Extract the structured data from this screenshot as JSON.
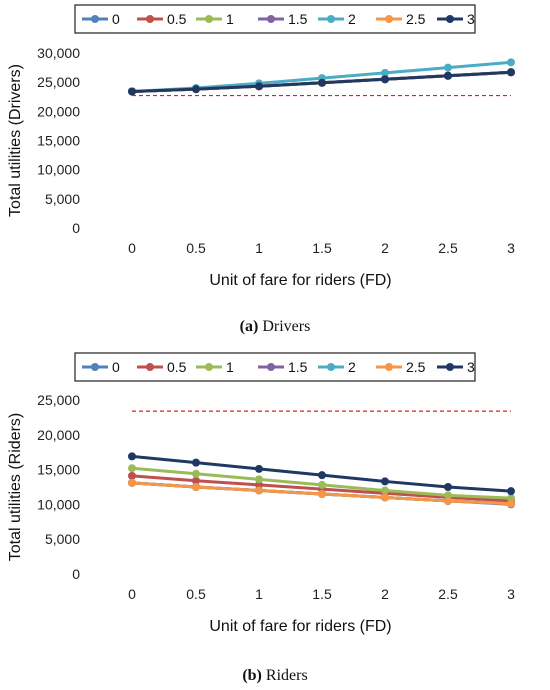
{
  "chart_data": [
    {
      "type": "line",
      "x": [
        0,
        0.5,
        1,
        1.5,
        2,
        2.5,
        3
      ],
      "x_tick_labels": [
        "0",
        "0.5",
        "1",
        "1.5",
        "2",
        "2.5",
        "3"
      ],
      "xlabel": "Unit of fare for riders (FD)",
      "ylabel": "Total utilities (Drivers)",
      "ylim": [
        0,
        30000
      ],
      "y_ticks": [
        0,
        5000,
        10000,
        15000,
        20000,
        25000,
        30000
      ],
      "y_tick_labels": [
        "0",
        "5,000",
        "10,000",
        "15,000",
        "20,000",
        "25,000",
        "30,000"
      ],
      "grid": false,
      "legend_position": "top",
      "legend": [
        "0",
        "0.5",
        "1",
        "1.5",
        "2",
        "2.5",
        "3"
      ],
      "series": [
        {
          "name": "0",
          "color": "#4f81bd",
          "values": [
            23400,
            23800,
            24300,
            24900,
            25500,
            26100,
            26700
          ]
        },
        {
          "name": "0.5",
          "color": "#c0504d",
          "values": [
            23400,
            23800,
            24300,
            24900,
            25500,
            26100,
            26700
          ]
        },
        {
          "name": "1",
          "color": "#9bbb59",
          "values": [
            23400,
            23800,
            24300,
            24900,
            25500,
            26100,
            26700
          ]
        },
        {
          "name": "1.5",
          "color": "#8064a2",
          "values": [
            23400,
            23800,
            24300,
            24900,
            25500,
            26100,
            26700
          ]
        },
        {
          "name": "2",
          "color": "#4bacc6",
          "values": [
            23400,
            24000,
            24800,
            25700,
            26600,
            27500,
            28400
          ]
        },
        {
          "name": "2.5",
          "color": "#f79646",
          "values": [
            23400,
            23800,
            24300,
            24900,
            25500,
            26100,
            26700
          ]
        },
        {
          "name": "3",
          "color": "#1f3864",
          "values": [
            23400,
            23800,
            24300,
            24900,
            25500,
            26100,
            26700
          ]
        }
      ],
      "reference_line": {
        "value": 22700,
        "color": "#e02020",
        "style": "dashed"
      },
      "caption": {
        "tag": "(a)",
        "text": "Drivers"
      }
    },
    {
      "type": "line",
      "x": [
        0,
        0.5,
        1,
        1.5,
        2,
        2.5,
        3
      ],
      "x_tick_labels": [
        "0",
        "0.5",
        "1",
        "1.5",
        "2",
        "2.5",
        "3"
      ],
      "xlabel": "Unit of fare for riders (FD)",
      "ylabel": "Total utilities (Riders)",
      "ylim": [
        0,
        25000
      ],
      "y_ticks": [
        0,
        5000,
        10000,
        15000,
        20000,
        25000
      ],
      "y_tick_labels": [
        "0",
        "5,000",
        "10,000",
        "15,000",
        "20,000",
        "25,000"
      ],
      "grid": false,
      "legend_position": "top",
      "legend": [
        "0",
        "0.5",
        "1",
        "1.5",
        "2",
        "2.5",
        "3"
      ],
      "series": [
        {
          "name": "0",
          "color": "#4f81bd",
          "values": [
            13100,
            12500,
            12000,
            11500,
            11000,
            10500,
            10000
          ]
        },
        {
          "name": "0.5",
          "color": "#c0504d",
          "values": [
            14100,
            13400,
            12800,
            12200,
            11600,
            11000,
            10500
          ]
        },
        {
          "name": "1",
          "color": "#9bbb59",
          "values": [
            15200,
            14400,
            13600,
            12800,
            12000,
            11300,
            10900
          ]
        },
        {
          "name": "1.5",
          "color": "#8064a2",
          "values": [
            13100,
            12500,
            12000,
            11500,
            11000,
            10500,
            10100
          ]
        },
        {
          "name": "2",
          "color": "#4bacc6",
          "values": [
            13100,
            12500,
            12000,
            11500,
            11000,
            10500,
            10100
          ]
        },
        {
          "name": "2.5",
          "color": "#f79646",
          "values": [
            13100,
            12500,
            12000,
            11500,
            11000,
            10500,
            10100
          ]
        },
        {
          "name": "3",
          "color": "#1f3864",
          "values": [
            16900,
            16000,
            15100,
            14200,
            13300,
            12500,
            11900
          ]
        }
      ],
      "reference_line": {
        "value": 23400,
        "color": "#e02020",
        "style": "dashed"
      },
      "caption": {
        "tag": "(b)",
        "text": "Riders"
      }
    }
  ]
}
